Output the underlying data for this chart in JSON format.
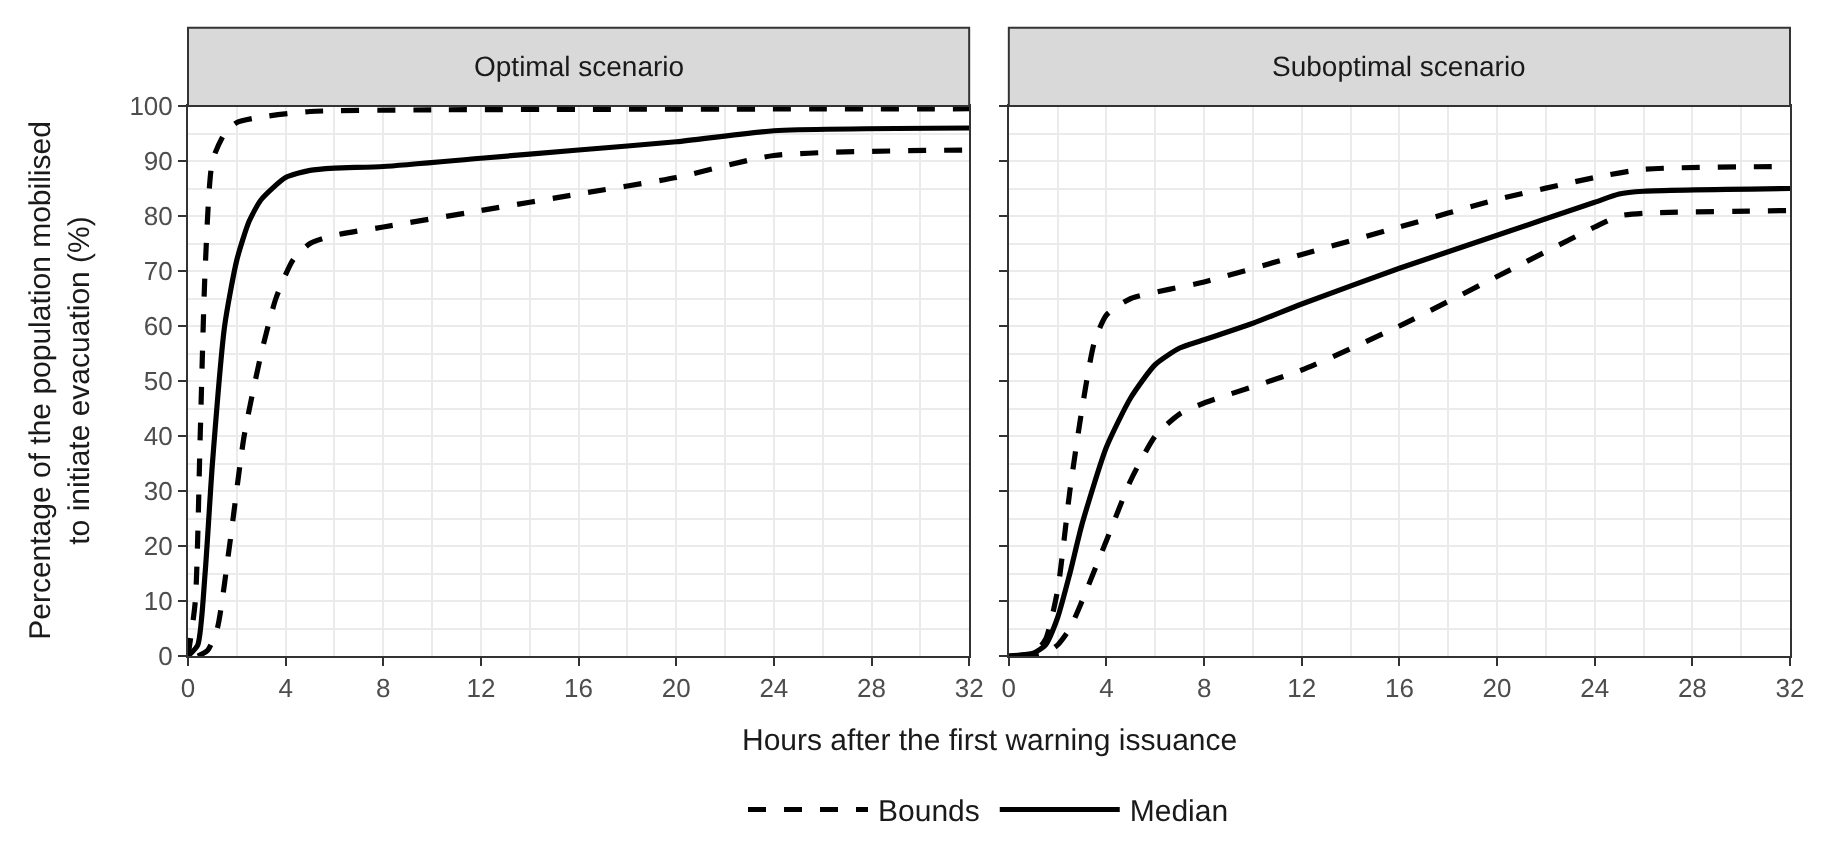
{
  "chart_data": [
    {
      "type": "line",
      "title": "Optimal scenario",
      "xlabel": "Hours after the first warning issuance",
      "ylabel": "Percentage of the population mobilised\nto initiate evacuation (%)",
      "xlim": [
        0,
        32
      ],
      "xticks": [
        0,
        4,
        8,
        12,
        16,
        20,
        24,
        28,
        32
      ],
      "ylim": [
        0,
        100
      ],
      "yticks": [
        0,
        10,
        20,
        30,
        40,
        50,
        60,
        70,
        80,
        90,
        100
      ],
      "grid": true,
      "legend": "bottom",
      "series": [
        {
          "name": "Bounds",
          "color": "#000000",
          "line_style": "dashed",
          "x": [
            0,
            0.3,
            0.5,
            0.7,
            1,
            1.5,
            2,
            3,
            5,
            10,
            32
          ],
          "values": [
            0,
            10,
            40,
            70,
            90,
            95,
            97,
            98,
            99,
            99.3,
            99.5
          ]
        },
        {
          "color": "#000000",
          "line_style": "dashed",
          "x": [
            0.4,
            0.8,
            1.2,
            1.7,
            2.3,
            3,
            3.6,
            4.3,
            5,
            6,
            8,
            12,
            16,
            20,
            24,
            32
          ],
          "values": [
            0,
            1,
            5,
            20,
            40,
            55,
            65,
            72,
            75,
            76.5,
            78,
            81,
            84,
            87,
            91,
            92
          ]
        },
        {
          "name": "Median",
          "color": "#000000",
          "line_style": "solid",
          "x": [
            0,
            0.4,
            0.7,
            1,
            1.5,
            2,
            2.5,
            3,
            4,
            5,
            6,
            8,
            12,
            16,
            20,
            24,
            32
          ],
          "values": [
            0,
            2,
            15,
            35,
            60,
            72,
            79,
            83,
            87,
            88.3,
            88.7,
            89,
            90.5,
            92,
            93.5,
            95.5,
            96
          ]
        }
      ]
    },
    {
      "type": "line",
      "title": "Suboptimal scenario",
      "tick_labels": "x",
      "xlim": [
        0,
        32
      ],
      "xticks": [
        0,
        4,
        8,
        12,
        16,
        20,
        24,
        28,
        32
      ],
      "ylim": [
        0,
        100
      ],
      "yticks": [
        0,
        10,
        20,
        30,
        40,
        50,
        60,
        70,
        80,
        90,
        100
      ],
      "grid": true,
      "legend": "bottom",
      "series": [
        {
          "name": "Bounds",
          "color": "#000000",
          "line_style": "dashed",
          "x": [
            0,
            1,
            1.5,
            2,
            2.5,
            3,
            3.5,
            4,
            5,
            8,
            12,
            16,
            20,
            24,
            26,
            32
          ],
          "values": [
            0,
            0.5,
            3,
            12,
            30,
            45,
            57,
            62,
            65,
            68,
            73,
            78,
            83,
            87,
            88.5,
            89
          ]
        },
        {
          "color": "#000000",
          "line_style": "dashed",
          "x": [
            0.5,
            1,
            1.5,
            2,
            2.5,
            3,
            4,
            5,
            6,
            7,
            8,
            12,
            16,
            20,
            24,
            25,
            26,
            32
          ],
          "values": [
            0,
            0,
            0.5,
            2,
            5,
            10,
            21,
            32,
            40,
            44,
            46,
            52,
            60,
            69,
            78,
            80,
            80.5,
            81
          ]
        },
        {
          "name": "Median",
          "color": "#000000",
          "line_style": "solid",
          "x": [
            0,
            1,
            1.5,
            2,
            2.5,
            3,
            4,
            5,
            6,
            7,
            8,
            10,
            12,
            16,
            20,
            24,
            25,
            26,
            32
          ],
          "values": [
            0,
            0.5,
            2,
            7,
            15,
            24,
            38,
            47,
            53,
            56,
            57.5,
            60.5,
            64,
            70.5,
            76.5,
            82.5,
            84,
            84.5,
            85
          ]
        }
      ]
    }
  ]
}
